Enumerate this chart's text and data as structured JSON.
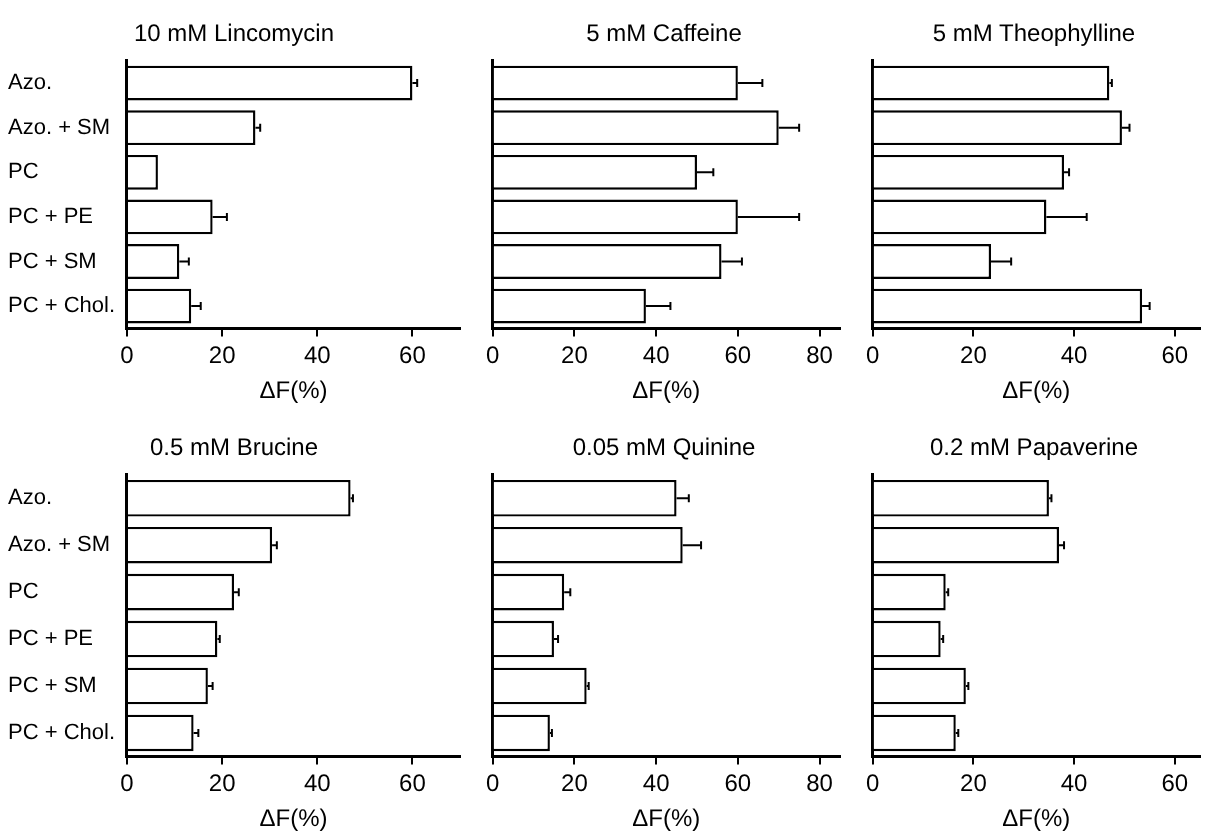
{
  "chart_data": [
    {
      "type": "bar",
      "orientation": "horizontal",
      "title": "10 mM Lincomycin",
      "xlabel": "ΔF(%)",
      "categories": [
        "Azo.",
        "Azo. + SM",
        "PC",
        "PC + PE",
        "PC + SM",
        "PC + Chol."
      ],
      "values": [
        60,
        27,
        6.5,
        18,
        11,
        13.5
      ],
      "errors": [
        [
          60,
          61
        ],
        [
          27,
          28
        ],
        null,
        [
          18,
          21
        ],
        [
          11,
          13
        ],
        [
          13.5,
          15.5
        ]
      ],
      "color": "#ffffff",
      "xlim": [
        0,
        70
      ],
      "xticks": [
        0,
        20,
        40,
        60
      ],
      "grid": false,
      "legend": false
    },
    {
      "type": "bar",
      "orientation": "horizontal",
      "title": "5 mM Caffeine",
      "xlabel": "ΔF(%)",
      "categories": [
        null,
        null,
        null,
        null,
        null,
        null
      ],
      "values": [
        60,
        70,
        50,
        60,
        56,
        37.5
      ],
      "errors": [
        [
          60,
          66
        ],
        [
          70,
          75
        ],
        [
          50,
          54
        ],
        [
          60,
          75
        ],
        [
          56,
          61
        ],
        [
          37.5,
          43.5
        ]
      ],
      "color": "#ffffff",
      "xlim": [
        0,
        85
      ],
      "xticks": [
        0,
        20,
        40,
        60,
        80
      ],
      "grid": false,
      "legend": false,
      "tick_labels": "x"
    },
    {
      "type": "bar",
      "orientation": "horizontal",
      "title": "5 mM Theophylline",
      "xlabel": "ΔF(%)",
      "categories": [
        null,
        null,
        null,
        null,
        null,
        null
      ],
      "values": [
        47,
        49.5,
        38,
        34.5,
        23.5,
        53.5
      ],
      "errors": [
        [
          47,
          47.5
        ],
        [
          49.5,
          51
        ],
        [
          38,
          39
        ],
        [
          34.5,
          42.5
        ],
        [
          23.5,
          27.5
        ],
        [
          53.5,
          55
        ]
      ],
      "color": "#ffffff",
      "xlim": [
        0,
        65
      ],
      "xticks": [
        0,
        20,
        40,
        60
      ],
      "grid": false,
      "legend": false,
      "tick_labels": "x"
    },
    {
      "type": "bar",
      "orientation": "horizontal",
      "title": "0.5 mM Brucine",
      "xlabel": "ΔF(%)",
      "categories": [
        "Azo.",
        "Azo. + SM",
        "PC",
        "PC + PE",
        "PC + SM",
        "PC + Chol."
      ],
      "values": [
        47,
        30.5,
        22.5,
        19,
        17,
        14
      ],
      "errors": [
        [
          47,
          47.5
        ],
        [
          30.5,
          31.5
        ],
        [
          22.5,
          23.5
        ],
        [
          19,
          19.5
        ],
        [
          17,
          18
        ],
        [
          14,
          15
        ]
      ],
      "color": "#ffffff",
      "xlim": [
        0,
        70
      ],
      "xticks": [
        0,
        20,
        40,
        60
      ],
      "grid": false,
      "legend": false
    },
    {
      "type": "bar",
      "orientation": "horizontal",
      "title": "0.05 mM Quinine",
      "xlabel": "ΔF(%)",
      "categories": [
        null,
        null,
        null,
        null,
        null,
        null
      ],
      "values": [
        45,
        46.5,
        17.5,
        15,
        23,
        14
      ],
      "errors": [
        [
          45,
          48
        ],
        [
          46.5,
          51
        ],
        [
          17.5,
          19
        ],
        [
          15,
          16
        ],
        [
          23,
          23.5
        ],
        [
          14,
          14.5
        ]
      ],
      "color": "#ffffff",
      "xlim": [
        0,
        85
      ],
      "xticks": [
        0,
        20,
        40,
        60,
        80
      ],
      "grid": false,
      "legend": false,
      "tick_labels": "x"
    },
    {
      "type": "bar",
      "orientation": "horizontal",
      "title": "0.2 mM Papaverine",
      "xlabel": "ΔF(%)",
      "categories": [
        null,
        null,
        null,
        null,
        null,
        null
      ],
      "values": [
        35,
        37,
        14.5,
        13.5,
        18.5,
        16.5
      ],
      "errors": [
        [
          35,
          35.5
        ],
        [
          37,
          38
        ],
        [
          14.5,
          15
        ],
        [
          13.5,
          14
        ],
        [
          18.5,
          19
        ],
        [
          16.5,
          17
        ]
      ],
      "color": "#ffffff",
      "xlim": [
        0,
        65
      ],
      "xticks": [
        0,
        20,
        40,
        60
      ],
      "grid": false,
      "legend": false,
      "tick_labels": "x"
    }
  ]
}
